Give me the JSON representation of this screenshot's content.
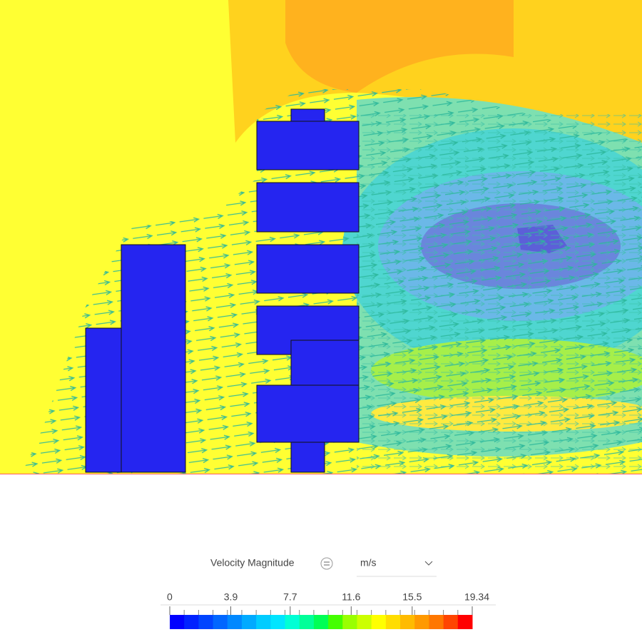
{
  "legend": {
    "field": "Velocity Magnitude",
    "unit": "m/s",
    "range": [
      0,
      19.34
    ],
    "ticks": [
      0,
      3.9,
      7.7,
      11.6,
      15.5,
      19.34
    ],
    "colors": [
      "#0000ff",
      "#0022ff",
      "#0044ff",
      "#0066ff",
      "#0088ff",
      "#00aaff",
      "#00ccff",
      "#00e5ff",
      "#00ffd5",
      "#00ff99",
      "#00ff55",
      "#44ff00",
      "#99ff00",
      "#ccff00",
      "#ffff00",
      "#ffdd00",
      "#ffbb00",
      "#ff9900",
      "#ff7700",
      "#ff4400",
      "#ff0000"
    ]
  }
}
